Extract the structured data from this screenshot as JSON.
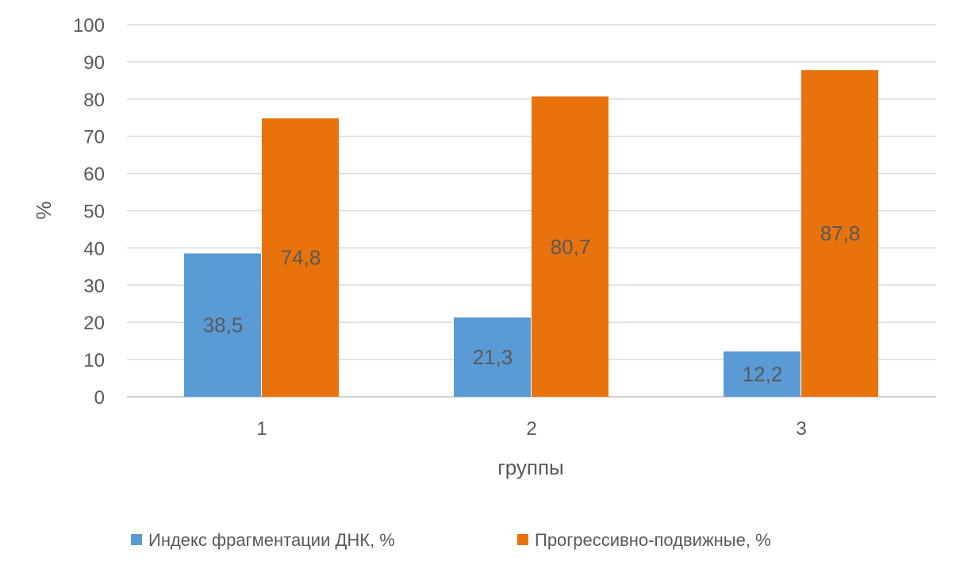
{
  "chart_data": {
    "type": "bar",
    "title": "",
    "xlabel": "группы",
    "ylabel": "%",
    "ylim": [
      0,
      100
    ],
    "yticks": [
      0,
      10,
      20,
      30,
      40,
      50,
      60,
      70,
      80,
      90,
      100
    ],
    "categories": [
      "1",
      "2",
      "3"
    ],
    "grid": true,
    "legend_position": "bottom",
    "series": [
      {
        "name": "Индекс фрагментации ДНК, %",
        "color": "#5b9bd5",
        "values": [
          38.5,
          21.3,
          12.2
        ],
        "labels": [
          "38,5",
          "21,3",
          "12,2"
        ]
      },
      {
        "name": "Прогрессивно-подвижные, %",
        "color": "#e8730c",
        "values": [
          74.8,
          80.7,
          87.8
        ],
        "labels": [
          "74,8",
          "80,7",
          "87,8"
        ]
      }
    ]
  }
}
